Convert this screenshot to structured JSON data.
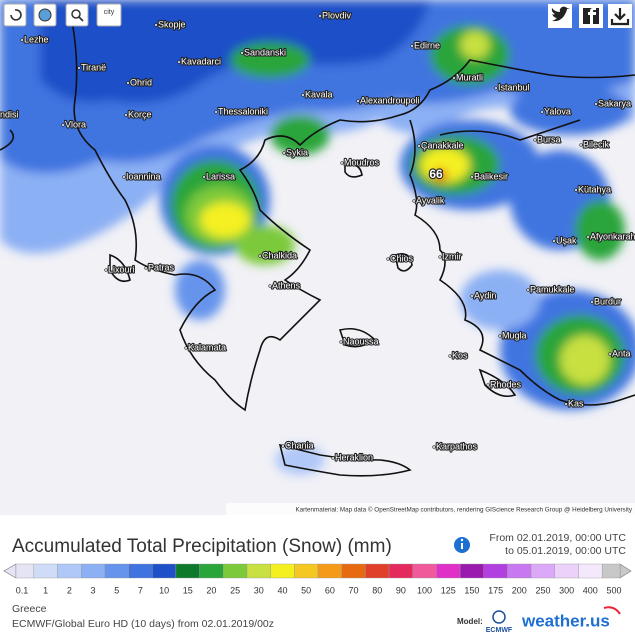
{
  "toolbar": {
    "city_button": "city"
  },
  "map": {
    "cities": [
      "Lezhe",
      "Skopje",
      "Plovdiv",
      "Tiranë",
      "Sandanski",
      "Edirne",
      "Kavadarci",
      "Ohrid",
      "Muratli",
      "Istanbul",
      "Kavala",
      "Alexandroupoli",
      "Sakarya",
      "Korçe",
      "Thessaloniki",
      "Yalova",
      "ndisi",
      "Vlora",
      "Bursa",
      "Bilecik",
      "Sykia",
      "Çanakkale",
      "Moudros",
      "Ioannina",
      "Larissa",
      "Balikesir",
      "Kütahya",
      "Ayvalik",
      "Afyonkarahi",
      "Uşak",
      "Chalkida",
      "Chios",
      "Izmir",
      "Lixouri",
      "Patras",
      "Athens",
      "Pamukkale",
      "Aydin",
      "Burdur",
      "Mugla",
      "Naoussa",
      "Kalamata",
      "Kos",
      "Anta",
      "Rhodes",
      "Kas",
      "Chania",
      "Heraklion",
      "Karpathos"
    ],
    "peak_label": 66,
    "attribution": "Kartenmaterial: Map data © OpenStreetMap contributors, rendering GIScience Research Group @ Heidelberg University"
  },
  "header": {
    "title": "Accumulated Total Precipitation (Snow) (mm)",
    "from": "From 02.01.2019, 00:00 UTC",
    "to": "to 05.01.2019, 00:00 UTC"
  },
  "legend": {
    "ticks": [
      0.1,
      1,
      2,
      3,
      5,
      7,
      10,
      15,
      20,
      25,
      30,
      40,
      50,
      60,
      70,
      80,
      90,
      100,
      125,
      150,
      175,
      200,
      250,
      300,
      400,
      500
    ],
    "colors": [
      "#e4e4f4",
      "#cfdcf8",
      "#b0c8f8",
      "#8cb0f4",
      "#6694ec",
      "#3f74e0",
      "#1e50c8",
      "#0c7a2a",
      "#2aa53a",
      "#7cc93a",
      "#c8e040",
      "#f4f020",
      "#f4c820",
      "#f49a18",
      "#e86a10",
      "#e0402a",
      "#e42a5c",
      "#f05a9a",
      "#e030c8",
      "#9a1ab0",
      "#b240e0",
      "#c878f0",
      "#dca8f8",
      "#ecd2fa",
      "#f4e8fc",
      "#c8c8c8"
    ]
  },
  "footer": {
    "region": "Greece",
    "model_run": "ECMWF/Global Euro HD (10 days) from 02.01.2019/00z",
    "model_label": "Model:",
    "model_name": "ECMWF",
    "brand": "weather.us"
  }
}
